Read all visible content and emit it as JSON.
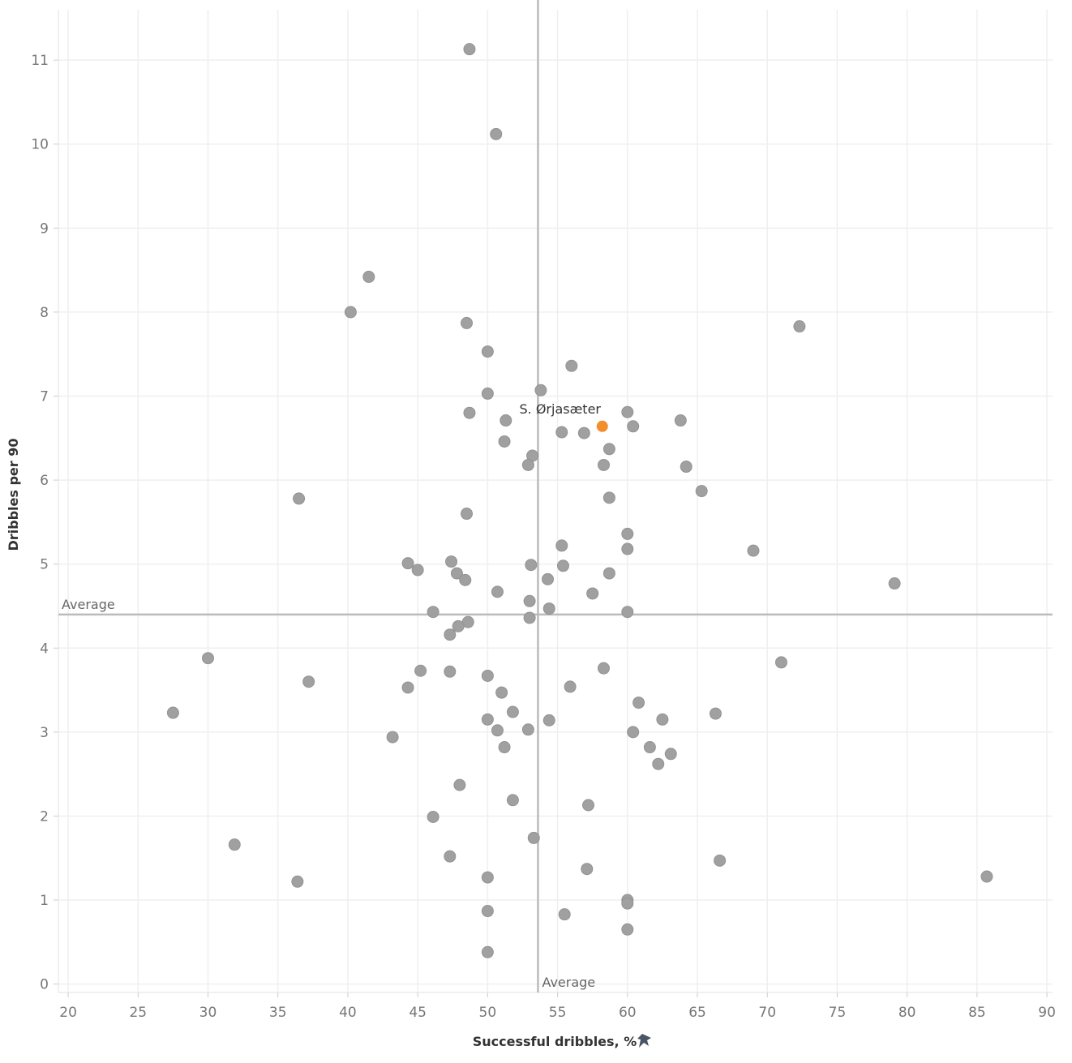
{
  "chart_data": {
    "type": "scatter",
    "xlabel": "Successful dribbles, %",
    "ylabel": "Dribbles per 90",
    "xlim": [
      19.3,
      90.4
    ],
    "ylim": [
      -0.1,
      11.6
    ],
    "xticks": [
      20,
      25,
      30,
      35,
      40,
      45,
      50,
      55,
      60,
      65,
      70,
      75,
      80,
      85,
      90
    ],
    "yticks": [
      0,
      1,
      2,
      3,
      4,
      5,
      6,
      7,
      8,
      9,
      10,
      11
    ],
    "grid": true,
    "average_x": 53.6,
    "average_y": 4.4,
    "average_label": "Average",
    "xlabel_icon": "pin-icon",
    "colors": {
      "point": "#a0a0a0",
      "highlight": "#f28e2b",
      "average_line": "#bbbbbb",
      "grid": "#efefef"
    },
    "highlight": {
      "label": "S. Ørjasæter",
      "x": 58.2,
      "y": 6.64
    },
    "points": [
      [
        48.7,
        11.13
      ],
      [
        50.6,
        10.12
      ],
      [
        41.5,
        8.42
      ],
      [
        40.2,
        8.0
      ],
      [
        48.5,
        7.87
      ],
      [
        72.3,
        7.83
      ],
      [
        50.0,
        7.53
      ],
      [
        56.0,
        7.36
      ],
      [
        53.8,
        7.07
      ],
      [
        50.0,
        7.03
      ],
      [
        60.0,
        6.81
      ],
      [
        48.7,
        6.8
      ],
      [
        51.3,
        6.71
      ],
      [
        63.8,
        6.71
      ],
      [
        60.4,
        6.64
      ],
      [
        55.3,
        6.57
      ],
      [
        56.9,
        6.56
      ],
      [
        51.2,
        6.46
      ],
      [
        58.7,
        6.37
      ],
      [
        53.2,
        6.29
      ],
      [
        52.9,
        6.18
      ],
      [
        58.3,
        6.18
      ],
      [
        64.2,
        6.16
      ],
      [
        65.3,
        5.87
      ],
      [
        36.5,
        5.78
      ],
      [
        58.7,
        5.79
      ],
      [
        48.5,
        5.6
      ],
      [
        60.0,
        5.36
      ],
      [
        55.3,
        5.22
      ],
      [
        60.0,
        5.18
      ],
      [
        69.0,
        5.16
      ],
      [
        44.3,
        5.01
      ],
      [
        47.4,
        5.03
      ],
      [
        53.1,
        4.99
      ],
      [
        55.4,
        4.98
      ],
      [
        45.0,
        4.93
      ],
      [
        47.8,
        4.89
      ],
      [
        58.7,
        4.89
      ],
      [
        48.4,
        4.81
      ],
      [
        54.3,
        4.82
      ],
      [
        79.1,
        4.77
      ],
      [
        50.7,
        4.67
      ],
      [
        57.5,
        4.65
      ],
      [
        53.0,
        4.56
      ],
      [
        54.4,
        4.47
      ],
      [
        46.1,
        4.43
      ],
      [
        60.0,
        4.43
      ],
      [
        53.0,
        4.36
      ],
      [
        48.6,
        4.31
      ],
      [
        47.9,
        4.26
      ],
      [
        47.3,
        4.16
      ],
      [
        30.0,
        3.88
      ],
      [
        71.0,
        3.83
      ],
      [
        58.3,
        3.76
      ],
      [
        45.2,
        3.73
      ],
      [
        47.3,
        3.72
      ],
      [
        50.0,
        3.67
      ],
      [
        37.2,
        3.6
      ],
      [
        55.9,
        3.54
      ],
      [
        44.3,
        3.53
      ],
      [
        51.0,
        3.47
      ],
      [
        60.8,
        3.35
      ],
      [
        27.5,
        3.23
      ],
      [
        51.8,
        3.24
      ],
      [
        66.3,
        3.22
      ],
      [
        50.0,
        3.15
      ],
      [
        54.4,
        3.14
      ],
      [
        62.5,
        3.15
      ],
      [
        52.9,
        3.03
      ],
      [
        50.7,
        3.02
      ],
      [
        60.4,
        3.0
      ],
      [
        43.2,
        2.94
      ],
      [
        51.2,
        2.82
      ],
      [
        61.6,
        2.82
      ],
      [
        63.1,
        2.74
      ],
      [
        62.2,
        2.62
      ],
      [
        48.0,
        2.37
      ],
      [
        51.8,
        2.19
      ],
      [
        57.2,
        2.13
      ],
      [
        46.1,
        1.99
      ],
      [
        53.3,
        1.74
      ],
      [
        31.9,
        1.66
      ],
      [
        47.3,
        1.52
      ],
      [
        66.6,
        1.47
      ],
      [
        57.1,
        1.37
      ],
      [
        85.7,
        1.28
      ],
      [
        50.0,
        1.27
      ],
      [
        36.4,
        1.22
      ],
      [
        60.0,
        1.0
      ],
      [
        60.0,
        0.96
      ],
      [
        50.0,
        0.87
      ],
      [
        55.5,
        0.83
      ],
      [
        60.0,
        0.65
      ],
      [
        50.0,
        0.38
      ]
    ]
  }
}
